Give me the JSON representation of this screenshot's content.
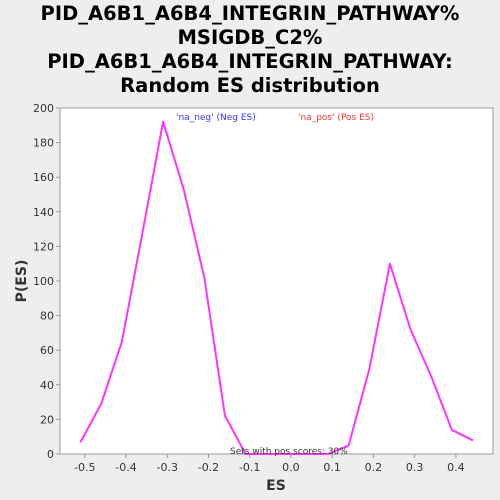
{
  "chart_data": {
    "type": "line",
    "title": "PID_A6B1_A6B4_INTEGRIN_PATHWAY%\nMSIGDB_C2%\nPID_A6B1_A6B4_INTEGRIN_PATHWAY:\nRandom ES distribution",
    "xlabel": "ES",
    "ylabel": "P(ES)",
    "xlim": [
      -0.56,
      0.49
    ],
    "ylim": [
      0,
      200
    ],
    "xticks": [
      "-0.5",
      "-0.4",
      "-0.3",
      "-0.2",
      "-0.1",
      "0.0",
      "0.1",
      "0.2",
      "0.3",
      "0.4"
    ],
    "xtick_values": [
      -0.5,
      -0.4,
      -0.3,
      -0.2,
      -0.1,
      0.0,
      0.1,
      0.2,
      0.3,
      0.4
    ],
    "yticks": [
      "0",
      "20",
      "40",
      "60",
      "80",
      "100",
      "120",
      "140",
      "160",
      "180",
      "200"
    ],
    "ytick_values": [
      0,
      20,
      40,
      60,
      80,
      100,
      120,
      140,
      160,
      180,
      200
    ],
    "grid": false,
    "legend": [
      {
        "label": "'na_neg' (Neg ES)",
        "color": "#3333ff"
      },
      {
        "label": "'na_pos' (Pos ES)",
        "color": "#ff3333"
      }
    ],
    "annotation": "Sets with pos scores: 30%",
    "series": [
      {
        "color": "#ff33ff",
        "x": [
          -0.51,
          -0.46,
          -0.41,
          -0.36,
          -0.31,
          -0.26,
          -0.21,
          -0.16,
          -0.11,
          -0.06,
          -0.01,
          0.04,
          0.09,
          0.14,
          0.19,
          0.24,
          0.29,
          0.34,
          0.39,
          0.44
        ],
        "y": [
          7,
          29,
          65,
          128,
          192,
          153,
          102,
          22,
          0,
          0,
          0,
          0,
          0,
          5,
          49,
          110,
          72,
          45,
          14,
          8
        ]
      }
    ]
  }
}
